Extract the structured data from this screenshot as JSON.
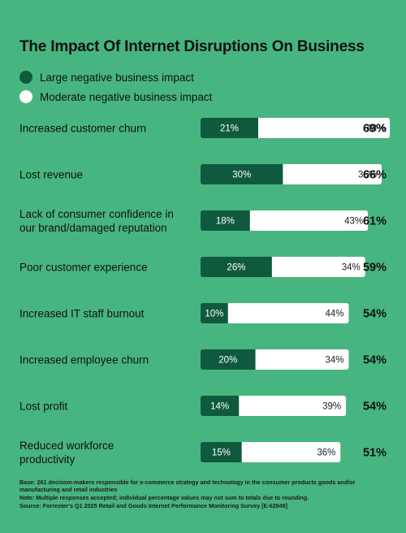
{
  "colors": {
    "background": "#47b57f",
    "large": "#0f5a3e",
    "moderate": "#ffffff"
  },
  "chart_data": {
    "type": "bar",
    "orientation": "horizontal",
    "stacked": true,
    "title": "The Impact Of Internet Disruptions On Business",
    "categories": [
      "Increased customer churn",
      "Lost revenue",
      "Lack of consumer confidence in our brand/damaged reputation",
      "Poor customer experience",
      "Increased IT staff burnout",
      "Increased employee churn",
      "Lost profit",
      "Reduced workforce productivity"
    ],
    "category_lines": [
      [
        "Increased customer churn"
      ],
      [
        "Lost revenue"
      ],
      [
        "Lack of consumer confidence in",
        "our brand/damaged reputation"
      ],
      [
        "Poor customer experience"
      ],
      [
        "Increased IT staff burnout"
      ],
      [
        "Increased employee churn"
      ],
      [
        "Lost profit"
      ],
      [
        "Reduced workforce",
        "productivity"
      ]
    ],
    "series": [
      {
        "name": "Large negative business impact",
        "values": [
          21,
          30,
          18,
          26,
          10,
          20,
          14,
          15
        ]
      },
      {
        "name": "Moderate negative business impact",
        "values": [
          48,
          36,
          43,
          34,
          44,
          34,
          39,
          36
        ]
      }
    ],
    "totals": [
      69,
      66,
      61,
      59,
      54,
      54,
      54,
      51
    ],
    "unit": "%",
    "legend_placement": "top-left",
    "grid": false
  },
  "footnotes": {
    "base": "Base: 261 decision-makers responsible for e-commerce strategy and technology in the consumer products goods and/or manufacturing and retail industries",
    "note": "Note: Multiple responses accepted; individual percentage values may not sum to totals due to rounding.",
    "source": "Source: Forrester's Q1 2025 Retail and Goods Internet Performance Monitoring Survey [E-62849]"
  }
}
